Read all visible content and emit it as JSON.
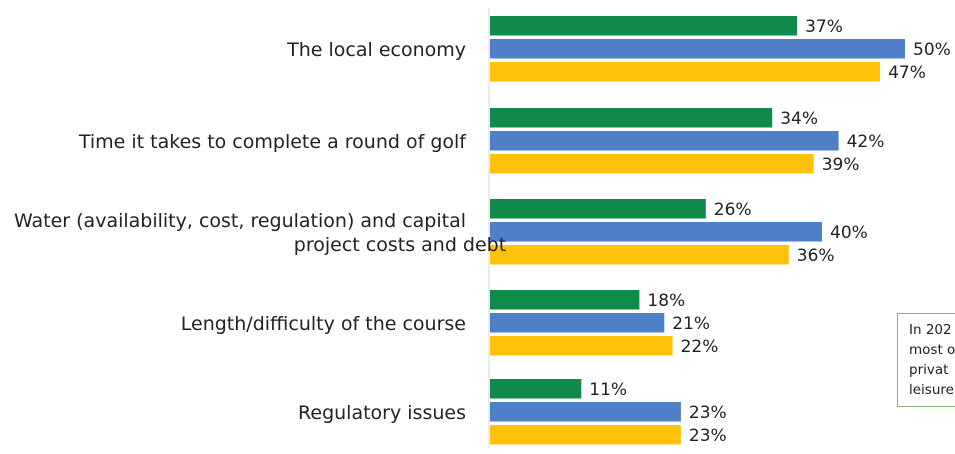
{
  "chart_data": {
    "type": "bar",
    "orientation": "horizontal",
    "categories": [
      [
        "The local economy"
      ],
      [
        "Time it takes to complete a round of golf"
      ],
      [
        "Water (availability, cost, regulation) and capital",
        "project costs and debt"
      ],
      [
        "Length/difficulty of the course"
      ],
      [
        "Regulatory issues"
      ]
    ],
    "series": [
      {
        "color": "#0f8a4a",
        "values": [
          37,
          34,
          26,
          18,
          11
        ],
        "labels": [
          "37%",
          "34%",
          "26%",
          "18%",
          "11%"
        ]
      },
      {
        "color": "#4f7fc6",
        "values": [
          50,
          42,
          40,
          21,
          23
        ],
        "labels": [
          "50%",
          "42%",
          "40%",
          "21%",
          "23%"
        ]
      },
      {
        "color": "#ffc20a",
        "values": [
          47,
          39,
          36,
          22,
          23
        ],
        "labels": [
          "47%",
          "39%",
          "36%",
          "22%",
          "23%"
        ]
      }
    ],
    "xlim": [
      0,
      50
    ],
    "grid": false,
    "legend": "none"
  },
  "note": {
    "lines": [
      "In 202",
      "most o",
      "privat",
      "leisure"
    ],
    "border_color": "#8db36b"
  }
}
